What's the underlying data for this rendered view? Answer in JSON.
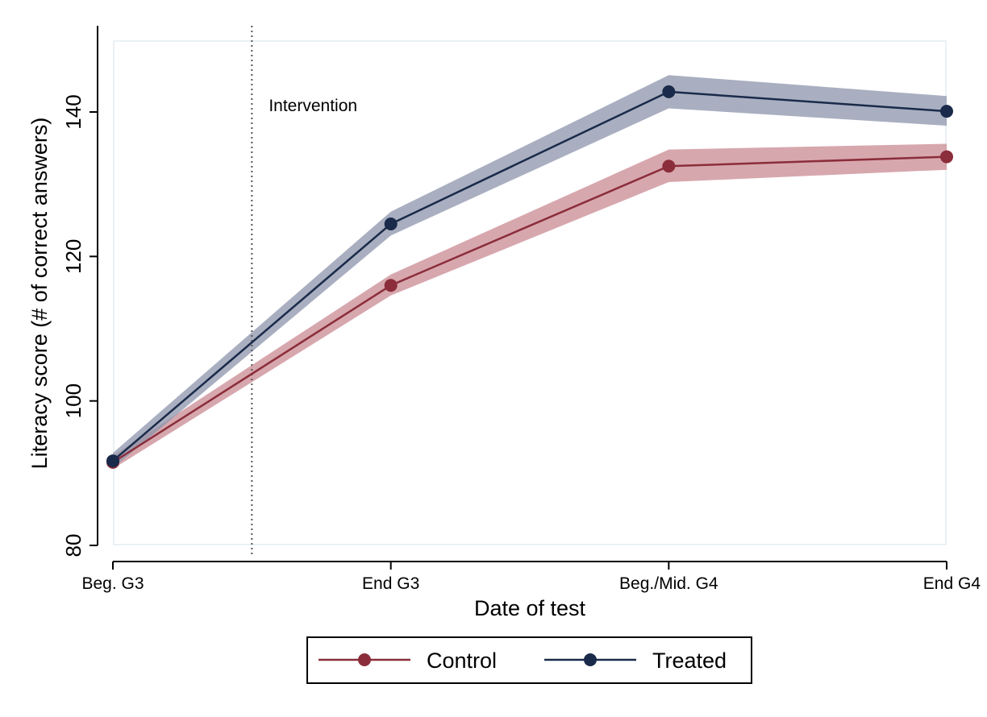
{
  "chart_data": {
    "type": "line",
    "xlabel": "Date of test",
    "ylabel": "Literacy score (# of correct answers)",
    "categories": [
      "Beg. G3",
      "End G3",
      "Beg./Mid. G4",
      "End G4"
    ],
    "yticks": [
      80,
      100,
      120,
      140
    ],
    "ylim": [
      80,
      152
    ],
    "grid": false,
    "legend_position": "bottom",
    "annotation": {
      "text": "Intervention",
      "x_category_position": 0.5
    },
    "series": [
      {
        "name": "Control",
        "color": "#8b2d3a",
        "band_color": "#c98a93",
        "values": [
          91.5,
          116.0,
          132.5,
          133.8
        ],
        "ci_low": [
          90.6,
          114.6,
          130.3,
          132.0
        ],
        "ci_high": [
          92.4,
          117.5,
          134.8,
          135.6
        ]
      },
      {
        "name": "Treated",
        "color": "#1a2a4a",
        "band_color": "#8c94ab",
        "values": [
          91.7,
          124.5,
          142.8,
          140.1
        ],
        "ci_low": [
          90.7,
          122.9,
          140.5,
          138.1
        ],
        "ci_high": [
          92.8,
          126.2,
          145.1,
          142.2
        ]
      }
    ]
  }
}
